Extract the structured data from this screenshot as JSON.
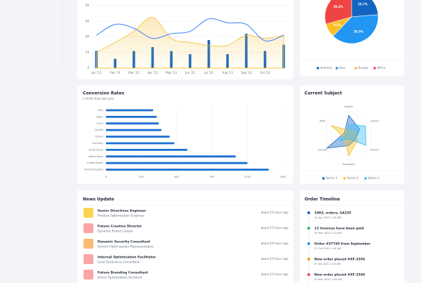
{
  "chart_data": [
    {
      "type": "combo",
      "categories": [
        "Jan '23",
        "Feb '23",
        "Mar '23",
        "Apr '23",
        "May '23",
        "Jun '23",
        "Jul '23",
        "Aug '23",
        "Sep '23",
        "Oct '23",
        null
      ],
      "series": [
        {
          "type": "bar",
          "color": "#1565c0",
          "values": [
            22,
            12,
            22,
            27,
            22,
            18,
            36,
            18,
            44,
            22,
            30
          ]
        },
        {
          "type": "area",
          "color": "#f5c342",
          "values": [
            20,
            33,
            47,
            65,
            38,
            33,
            29,
            29,
            42,
            38,
            42
          ]
        },
        {
          "type": "line",
          "color": "#3b82f6",
          "values": [
            42,
            56,
            51,
            38,
            44,
            47,
            63,
            58,
            56,
            35,
            42
          ]
        }
      ],
      "ylim": [
        0,
        80
      ],
      "yticks": [
        0,
        20,
        40,
        60,
        80
      ],
      "grid": true
    },
    {
      "type": "pie",
      "categories": [
        "America",
        "Asia",
        "Europe",
        "Africa"
      ],
      "values": [
        23.7,
        38.5,
        8.4,
        29.4
      ],
      "value_labels": [
        "23.7%",
        "38.5%",
        "8.4%",
        "29.4%"
      ],
      "colors": [
        "#1565c0",
        "#2196f3",
        "#fbbf24",
        "#ef4444"
      ]
    },
    {
      "type": "hbar",
      "title": "Conversion Rates",
      "subtitle": "(+43%) than last year",
      "categories": [
        "Italy",
        "Japan",
        "China",
        "Canada",
        "France",
        "Germany",
        "South Korea",
        "Netherlands",
        "United States",
        "United Kingdom"
      ],
      "values": [
        400,
        430,
        448,
        470,
        540,
        580,
        690,
        1100,
        1200,
        1380
      ],
      "color": "#1a6fd1",
      "xlim": [
        0,
        1500
      ],
      "xticks": [
        0,
        300,
        600,
        900,
        1200,
        1500
      ],
      "grid": true
    },
    {
      "type": "radar",
      "title": "Current Subject",
      "categories": [
        "English",
        "History",
        "Physics",
        "Geography",
        "Chinese",
        "Math"
      ],
      "rlim": [
        0,
        100
      ],
      "series": [
        {
          "name": "Series 1",
          "color": "#1565c0",
          "values": [
            80,
            50,
            30,
            40,
            100,
            20
          ]
        },
        {
          "name": "Series 2",
          "color": "#fbbf24",
          "values": [
            20,
            30,
            40,
            80,
            20,
            80
          ]
        },
        {
          "name": "Series 3",
          "color": "#38bdf8",
          "values": [
            44,
            76,
            78,
            13,
            43,
            10
          ]
        }
      ]
    }
  ],
  "news": {
    "title": "News Update",
    "items": [
      {
        "title": "Senior Directives Engineer",
        "subtitle": "Product Optimization Engineer",
        "time": "about 21 hours ago"
      },
      {
        "title": "Future Creative Director",
        "subtitle": "Dynamic Brand Liaison",
        "time": "about 15 hours ago"
      },
      {
        "title": "Dynamic Security Consultant",
        "subtitle": "District Optimization Representative",
        "time": "about 18 hours ago"
      },
      {
        "title": "Internal Optimization Facilitator",
        "subtitle": "Lead Assurance Consultant",
        "time": "about 10 hours ago"
      },
      {
        "title": "Future Branding Consultant",
        "subtitle": "Direct Optimization Architect",
        "time": "about 23 hours ago"
      }
    ]
  },
  "timeline": {
    "title": "Order Timeline",
    "items": [
      {
        "title": "1983, orders, $4220",
        "date": "14 Apr 2022 1:44 AM"
      },
      {
        "title": "12 Invoices have been paid",
        "date": "09 Mar 2022 1:44 AM"
      },
      {
        "title": "Order #37745 from September",
        "date": "27 Oct 2022 1:44 AM"
      },
      {
        "title": "New order placed #XF-2356",
        "date": "07 Jan 2022 1:44 AM"
      },
      {
        "title": "New order placed #XF-2346",
        "date": "03 Nov 2022 1:44 AM"
      }
    ]
  }
}
